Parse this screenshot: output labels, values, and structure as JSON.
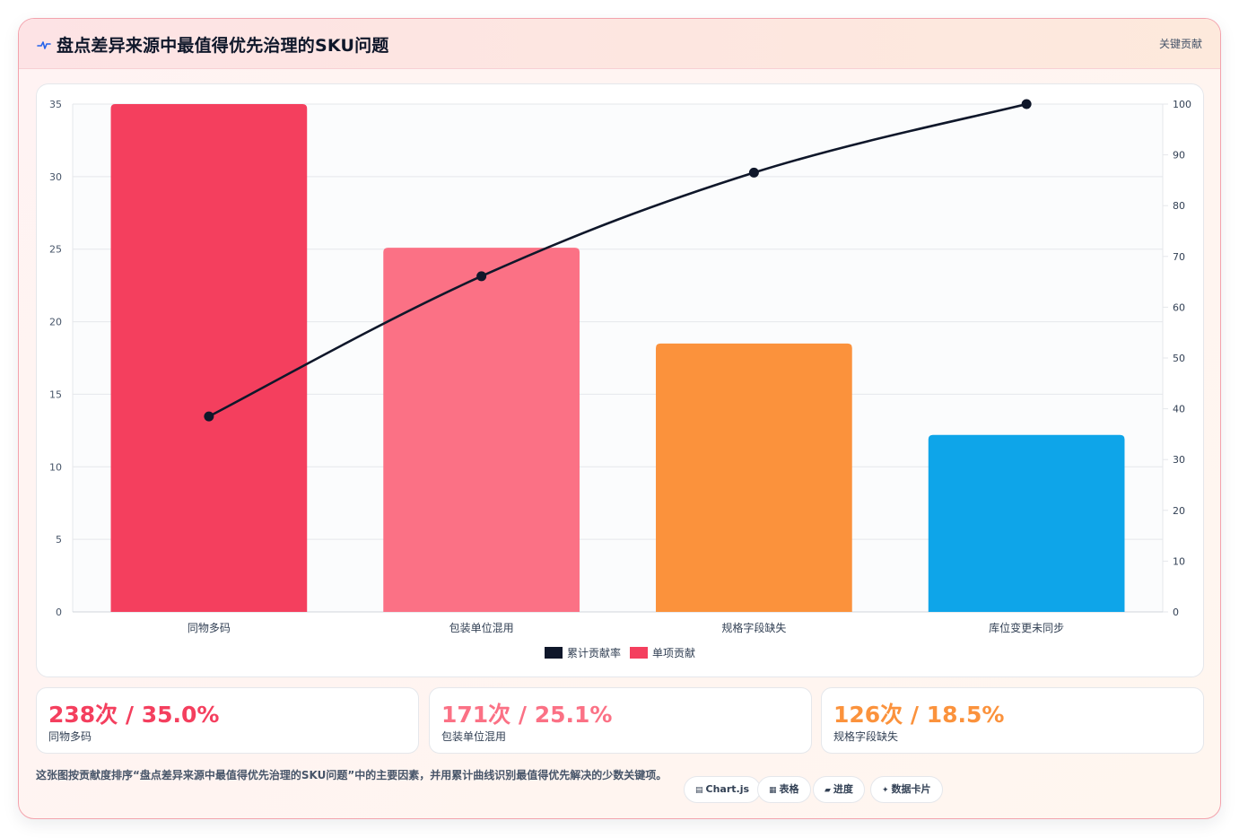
{
  "header": {
    "title": "盘点差异来源中最值得优先治理的SKU问题",
    "tag": "关键贡献"
  },
  "chart_data": {
    "type": "bar",
    "categories": [
      "同物多码",
      "包装单位混用",
      "规格字段缺失",
      "库位变更未同步"
    ],
    "series": [
      {
        "name": "单项贡献",
        "type": "bar",
        "axis": "left",
        "values": [
          35.0,
          25.1,
          18.5,
          12.2
        ],
        "colors": [
          "#f43f5e",
          "#fb7185",
          "#fb923c",
          "#0ea5e9"
        ]
      },
      {
        "name": "累计贡献率",
        "type": "line",
        "axis": "right",
        "values": [
          38.5,
          66.1,
          86.5,
          100.0
        ],
        "color": "#0f172a"
      }
    ],
    "y_left": {
      "min": 0,
      "max": 35,
      "ticks": [
        0,
        5,
        10,
        15,
        20,
        25,
        30,
        35
      ]
    },
    "y_right": {
      "min": 0,
      "max": 100,
      "ticks": [
        0,
        10,
        20,
        30,
        40,
        50,
        60,
        70,
        80,
        90,
        100
      ]
    },
    "grid": true,
    "legend": {
      "position": "bottom",
      "entries": [
        {
          "label": "累计贡献率",
          "color": "#0f172a"
        },
        {
          "label": "单项贡献",
          "color": "#f43f5e"
        }
      ]
    }
  },
  "stats": [
    {
      "value": "238次 / 35.0%",
      "label": "同物多码",
      "color": "#f43f5e"
    },
    {
      "value": "171次 / 25.1%",
      "label": "包装单位混用",
      "color": "#fb7185"
    },
    {
      "value": "126次 / 18.5%",
      "label": "规格字段缺失",
      "color": "#fb923c"
    }
  ],
  "footer": {
    "note": "这张图按贡献度排序“盘点差异来源中最值得优先治理的SKU问题”中的主要因素，并用累计曲线识别最值得优先解决的少数关键项。",
    "chips": [
      {
        "icon": "▤",
        "label": "Chart.js"
      },
      {
        "icon": "▦",
        "label": "表格"
      },
      {
        "icon": "▰",
        "label": "进度"
      },
      {
        "icon": "✦",
        "label": "数据卡片"
      }
    ]
  }
}
